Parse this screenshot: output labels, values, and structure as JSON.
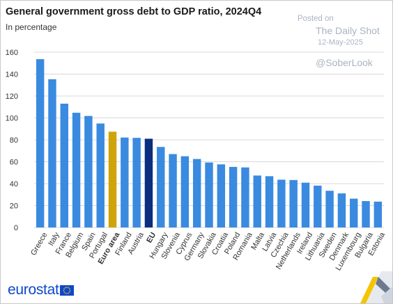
{
  "header": {
    "title": "General government gross debt to GDP ratio, 2024Q4",
    "subtitle": "In percentage"
  },
  "watermark": {
    "posted": "Posted on",
    "source": "The Daily Shot",
    "date": "12-May-2025",
    "handle": "@SoberLook"
  },
  "branding": {
    "logo_text": "eurostat",
    "logo_icon": "eu-flag-icon"
  },
  "colors": {
    "bar": "#3a8ae0",
    "euro_area": "#cfa30a",
    "eu": "#0b2e7e",
    "grid": "#d8d8d8",
    "axis_text": "#333333"
  },
  "chart_data": {
    "type": "bar",
    "title": "General government gross debt to GDP ratio, 2024Q4",
    "subtitle": "In percentage",
    "xlabel": "",
    "ylabel": "",
    "ylim": [
      0,
      160
    ],
    "yticks": [
      0,
      20,
      40,
      60,
      80,
      100,
      120,
      140,
      160
    ],
    "grid": true,
    "highlight": {
      "Euro area": "euro_area",
      "EU": "eu"
    },
    "bold_categories": [
      "Euro area",
      "EU"
    ],
    "categories": [
      "Greece",
      "Italy",
      "France",
      "Belgium",
      "Spain",
      "Portugal",
      "Euro area",
      "Finland",
      "Austria",
      "EU",
      "Hungary",
      "Slovenia",
      "Cyprus",
      "Germany",
      "Slovakia",
      "Croatia",
      "Poland",
      "Romania",
      "Malta",
      "Latvia",
      "Czechia",
      "Netherlands",
      "Ireland",
      "Lithuania",
      "Sweden",
      "Denmark",
      "Luxembourg",
      "Bulgaria",
      "Estonia"
    ],
    "values": [
      153.6,
      135.3,
      113.0,
      104.7,
      101.8,
      94.9,
      87.4,
      82.1,
      81.8,
      81.0,
      73.5,
      67.0,
      65.0,
      62.5,
      59.3,
      57.6,
      55.3,
      54.8,
      47.4,
      46.8,
      43.6,
      43.3,
      40.9,
      38.2,
      33.5,
      31.1,
      26.3,
      24.1,
      23.6
    ]
  }
}
